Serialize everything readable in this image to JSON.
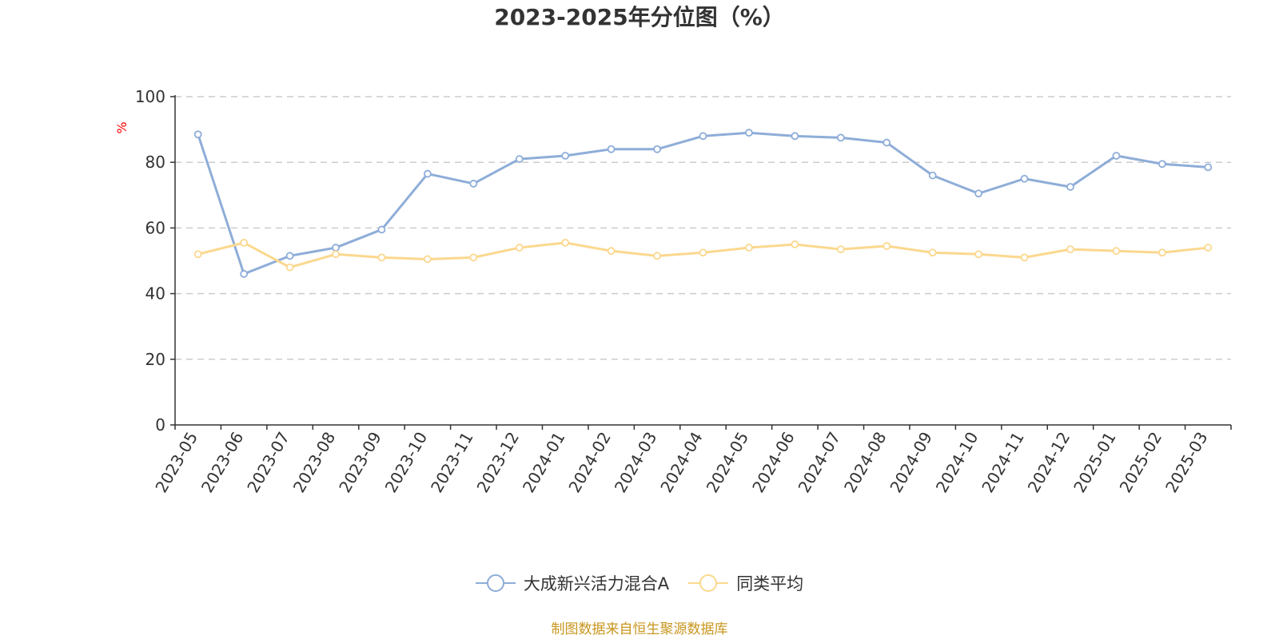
{
  "chart_data": {
    "type": "line",
    "title": "2023-2025年分位图（%）",
    "ylabel": "%",
    "xlabel": "",
    "ylim": [
      0,
      100
    ],
    "yticks": [
      0,
      20,
      40,
      60,
      80,
      100
    ],
    "grid": "horizontal-dashed",
    "legend_position": "bottom-center",
    "categories": [
      "2023-05",
      "2023-06",
      "2023-07",
      "2023-08",
      "2023-09",
      "2023-10",
      "2023-11",
      "2023-12",
      "2024-01",
      "2024-02",
      "2024-03",
      "2024-04",
      "2024-05",
      "2024-06",
      "2024-07",
      "2024-08",
      "2024-09",
      "2024-10",
      "2024-11",
      "2024-12",
      "2025-01",
      "2025-02",
      "2025-03"
    ],
    "series": [
      {
        "name": "大成新兴活力混合A",
        "color": "#8eadd8",
        "values": [
          88.5,
          46,
          51.5,
          54,
          59.5,
          76.5,
          73.5,
          81,
          82,
          84,
          84,
          88,
          89,
          88,
          87.5,
          86,
          76,
          70.5,
          75,
          72.5,
          82,
          79.5,
          78.5
        ]
      },
      {
        "name": "同类平均",
        "color": "#fbd88e",
        "values": [
          52,
          55.5,
          48,
          52,
          51,
          50.5,
          51,
          54,
          55.5,
          53,
          51.5,
          52.5,
          54,
          55,
          53.5,
          54.5,
          52.5,
          52,
          51,
          53.5,
          53,
          52.5,
          54
        ]
      }
    ]
  },
  "source_note": "制图数据来自恒生聚源数据库",
  "axis_color": "#333333",
  "grid_color": "#cccccc",
  "ylabel_color": "#ff0000"
}
